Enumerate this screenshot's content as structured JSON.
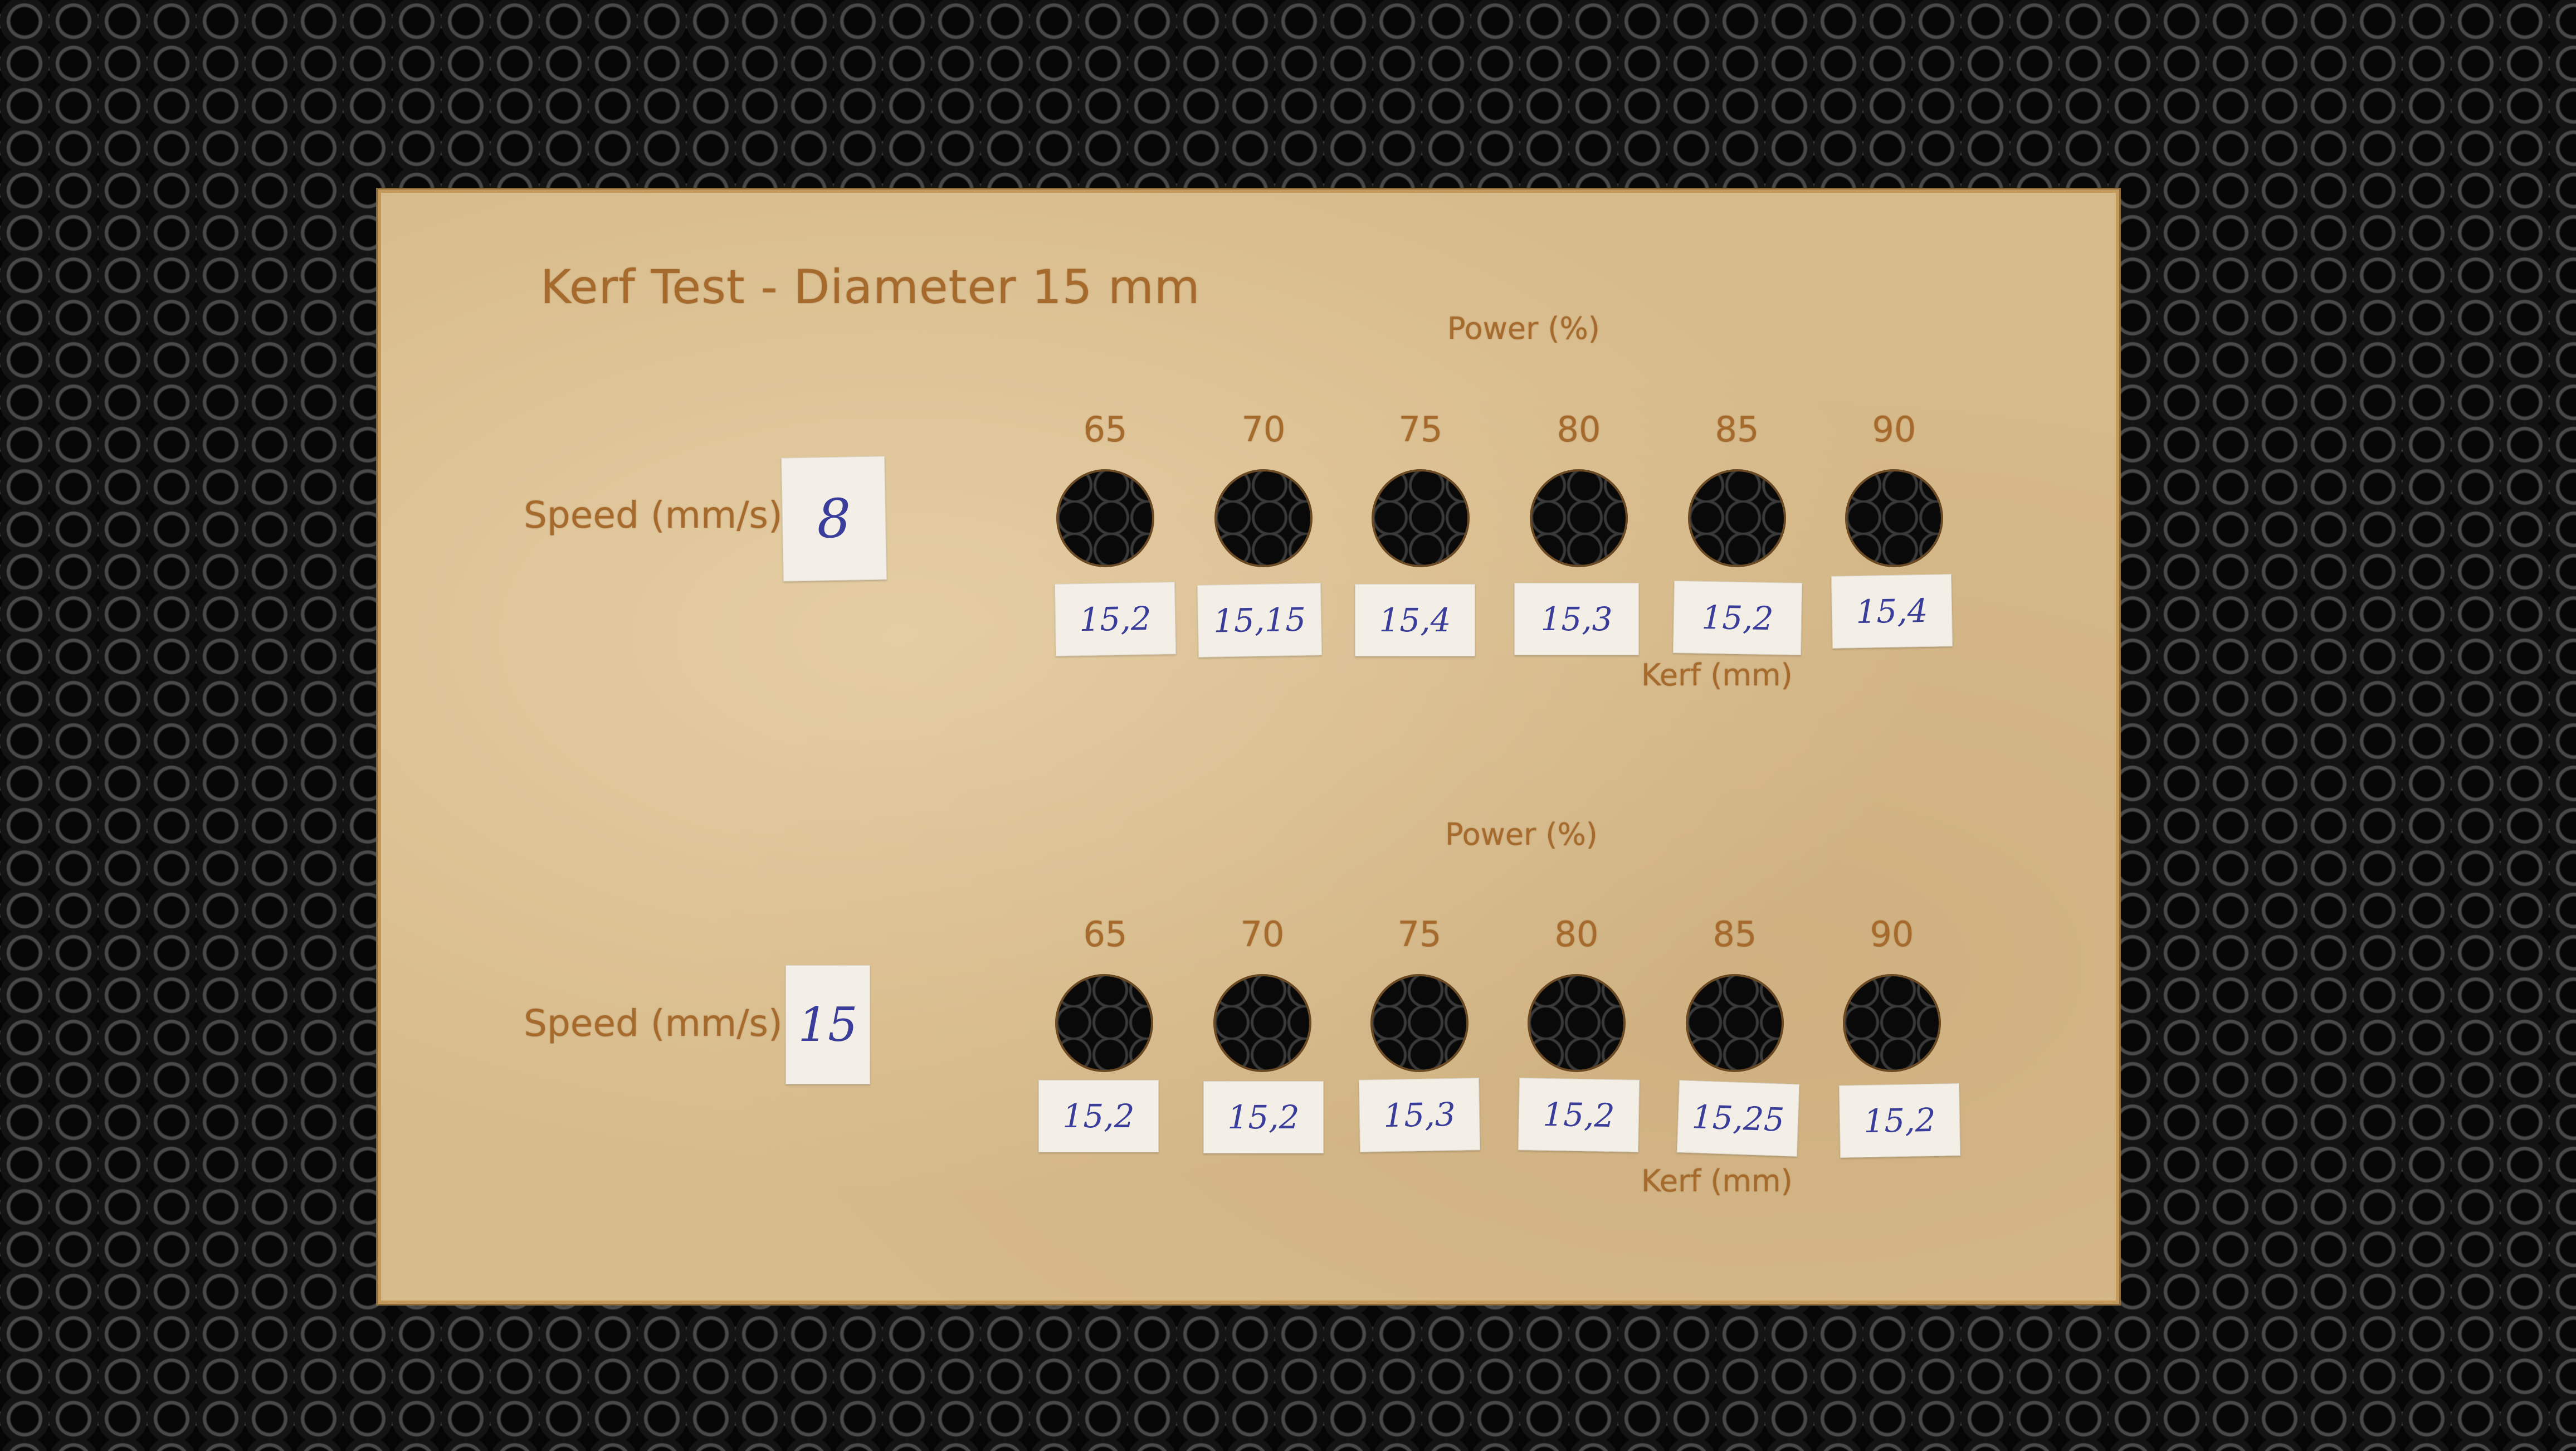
{
  "title": "Kerf Test -  Diameter 15 mm",
  "sections": [
    {
      "power_label": "Power (%)",
      "speed_label": "Speed (mm/s):",
      "speed_value": "8",
      "kerf_label": "Kerf (mm)",
      "powers": [
        "65",
        "70",
        "75",
        "80",
        "85",
        "90"
      ],
      "kerfs": [
        "15,2",
        "15,15",
        "15,4",
        "15,3",
        "15,2",
        "15,4"
      ]
    },
    {
      "power_label": "Power (%)",
      "speed_label": "Speed (mm/s):",
      "speed_value": "15",
      "kerf_label": "Kerf (mm)",
      "powers": [
        "65",
        "70",
        "75",
        "80",
        "85",
        "90"
      ],
      "kerfs": [
        "15,2",
        "15,2",
        "15,3",
        "15,2",
        "15,25",
        "15,2"
      ]
    }
  ],
  "colors": {
    "board": "#d7ba8a",
    "engraving": "#a66a2c",
    "ink": "#3a3e9a",
    "paper": "#f3efe6"
  }
}
